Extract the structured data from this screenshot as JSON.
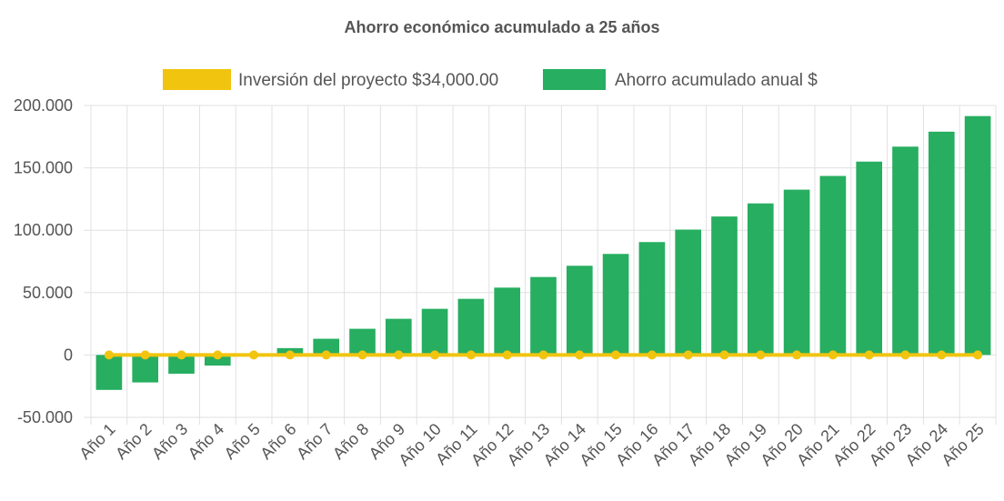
{
  "chart_data": {
    "type": "bar",
    "title": "Ahorro económico acumulado a 25 años",
    "categories": [
      "Año 1",
      "Año 2",
      "Año 3",
      "Año 4",
      "Año 5",
      "Año 6",
      "Año 7",
      "Año 8",
      "Año 9",
      "Año 10",
      "Año 11",
      "Año 12",
      "Año 13",
      "Año 14",
      "Año 15",
      "Año 16",
      "Año 17",
      "Año 18",
      "Año 19",
      "Año 20",
      "Año 21",
      "Año 22",
      "Año 23",
      "Año 24",
      "Año 25"
    ],
    "series": [
      {
        "name": "Inversión del proyecto $34,000.00",
        "type": "line",
        "color": "#f1c40f",
        "values": [
          0,
          0,
          0,
          0,
          0,
          0,
          0,
          0,
          0,
          0,
          0,
          0,
          0,
          0,
          0,
          0,
          0,
          0,
          0,
          0,
          0,
          0,
          0,
          0,
          0
        ]
      },
      {
        "name": "Ahorro acumulado anual $",
        "type": "bar",
        "color": "#27ae60",
        "values": [
          -28000,
          -22000,
          -15000,
          -8500,
          -500,
          5500,
          13000,
          21000,
          29000,
          37000,
          45000,
          54000,
          62500,
          71500,
          81000,
          90500,
          100500,
          111000,
          121500,
          132500,
          143500,
          155000,
          167000,
          179000,
          191500
        ]
      }
    ],
    "yticks": [
      "200.000",
      "150.000",
      "100.000",
      "50.000",
      "0",
      "-50.000"
    ],
    "ylim": [
      -50000,
      200000
    ],
    "grid": true,
    "legend_position": "top"
  }
}
